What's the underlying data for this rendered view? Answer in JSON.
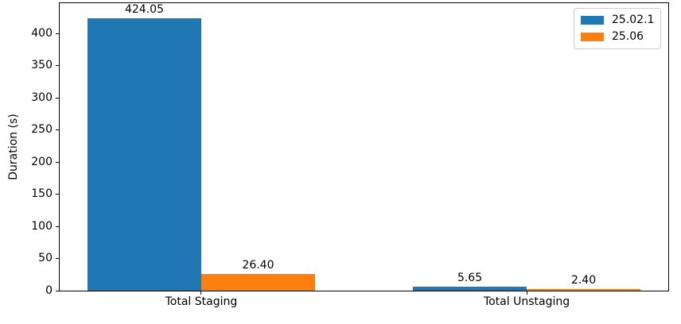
{
  "chart_data": {
    "type": "bar",
    "title": "",
    "xlabel": "",
    "ylabel": "Duration (s)",
    "categories": [
      "Total Staging",
      "Total Unstaging"
    ],
    "series": [
      {
        "name": "25.02.1",
        "color": "#1f77b4",
        "values": [
          424.05,
          5.65
        ]
      },
      {
        "name": "25.06",
        "color": "#ff7f0e",
        "values": [
          26.4,
          2.4
        ]
      }
    ],
    "value_labels": [
      [
        "424.05",
        "5.65"
      ],
      [
        "26.40",
        "2.40"
      ]
    ],
    "yticks": [
      0,
      50,
      100,
      150,
      200,
      250,
      300,
      350,
      400
    ],
    "ylim": [
      0,
      447
    ],
    "grid": false,
    "legend_position": "upper-right",
    "spine_color": "#000000",
    "background_color": "#ffffff"
  }
}
